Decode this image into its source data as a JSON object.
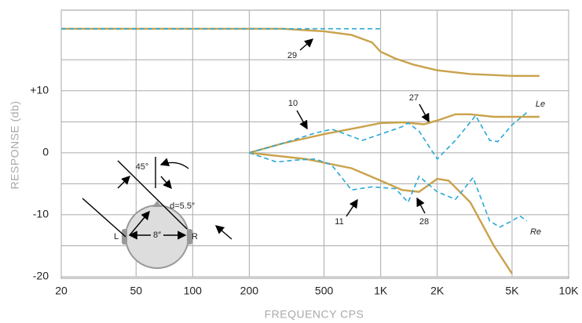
{
  "chart_data": {
    "type": "line",
    "log_x": true,
    "y_label": "RESPONSE (db)",
    "x_label": "FREQUENCY CPS",
    "xlim": [
      20,
      10000
    ],
    "ylim": [
      -20,
      23
    ],
    "xticks": [
      20,
      50,
      100,
      200,
      500,
      {
        "value": 1000,
        "label": "1K"
      },
      {
        "value": 2000,
        "label": "2K"
      },
      {
        "value": 5000,
        "label": "5K"
      },
      {
        "value": 10000,
        "label": "10K"
      }
    ],
    "yticks": [
      -20,
      -10,
      0,
      {
        "value": 10,
        "label": "+10"
      }
    ],
    "ygrid_minor": [
      -15,
      -5,
      5,
      15
    ],
    "grid": true,
    "series": [
      {
        "color": "#c9a24a",
        "dashed": false,
        "x": [
          20,
          100,
          300,
          500,
          700,
          900,
          1000,
          1200,
          1500,
          2000,
          3000,
          5000,
          7000
        ],
        "values": [
          20,
          20,
          20,
          19.6,
          19,
          17.8,
          16.3,
          15.2,
          14.2,
          13.3,
          12.7,
          12.4,
          12.4
        ]
      },
      {
        "color": "#29a8d8",
        "dashed": true,
        "x": [
          20,
          1000
        ],
        "values": [
          20,
          20
        ]
      },
      {
        "color": "#c9a24a",
        "dashed": false,
        "x": [
          200,
          300,
          500,
          800,
          1000,
          1300,
          1700,
          2000,
          2500,
          3000,
          4000,
          7000
        ],
        "values": [
          0,
          1.5,
          3,
          4.2,
          4.8,
          4.9,
          4.6,
          5.2,
          6.2,
          6.2,
          5.8,
          5.8
        ]
      },
      {
        "color": "#29a8d8",
        "dashed": true,
        "x": [
          200,
          300,
          450,
          550,
          650,
          800,
          1000,
          1300,
          1400,
          1600,
          2000,
          2500,
          3200,
          3800,
          4200,
          5000,
          6000
        ],
        "values": [
          0,
          1.5,
          3.2,
          3.8,
          3,
          2,
          3,
          4.2,
          4.8,
          3.5,
          -1,
          2,
          6,
          2,
          1.8,
          4.5,
          6.5
        ]
      },
      {
        "color": "#c9a24a",
        "dashed": false,
        "x": [
          200,
          400,
          700,
          1000,
          1300,
          1600,
          1800,
          2000,
          2300,
          3000,
          4000,
          5000
        ],
        "values": [
          0,
          -1,
          -2.5,
          -4.5,
          -6,
          -6.3,
          -5.2,
          -4.2,
          -4.5,
          -8,
          -15,
          -19.5
        ]
      },
      {
        "color": "#29a8d8",
        "dashed": true,
        "x": [
          200,
          280,
          350,
          450,
          550,
          700,
          900,
          1200,
          1400,
          1600,
          2000,
          2500,
          3100,
          3800,
          4300,
          5000,
          5500,
          6000
        ],
        "values": [
          0,
          -1.5,
          -1.2,
          -1,
          -2,
          -6,
          -5.5,
          -5.8,
          -8,
          -3.8,
          -6.3,
          -7.5,
          -4,
          -11,
          -12,
          -11,
          -10.2,
          -11
        ]
      }
    ],
    "annotations": [
      "29",
      "10",
      "27",
      "11",
      "28",
      "Le",
      "Re"
    ],
    "diagram_labels": [
      "45°",
      "d=5.5″",
      "8″",
      "L",
      "R"
    ]
  }
}
